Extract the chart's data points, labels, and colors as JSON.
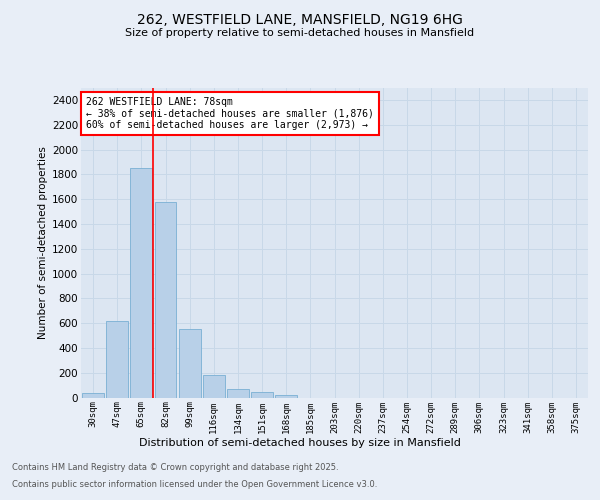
{
  "title1": "262, WESTFIELD LANE, MANSFIELD, NG19 6HG",
  "title2": "Size of property relative to semi-detached houses in Mansfield",
  "xlabel": "Distribution of semi-detached houses by size in Mansfield",
  "ylabel": "Number of semi-detached properties",
  "categories": [
    "30sqm",
    "47sqm",
    "65sqm",
    "82sqm",
    "99sqm",
    "116sqm",
    "134sqm",
    "151sqm",
    "168sqm",
    "185sqm",
    "203sqm",
    "220sqm",
    "237sqm",
    "254sqm",
    "272sqm",
    "289sqm",
    "306sqm",
    "323sqm",
    "341sqm",
    "358sqm",
    "375sqm"
  ],
  "values": [
    35,
    620,
    1850,
    1580,
    550,
    185,
    70,
    42,
    20,
    0,
    0,
    0,
    0,
    0,
    0,
    0,
    0,
    0,
    0,
    0,
    0
  ],
  "bar_color": "#b8d0e8",
  "bar_edge_color": "#7aafd4",
  "vline_color": "red",
  "annotation_text": "262 WESTFIELD LANE: 78sqm\n← 38% of semi-detached houses are smaller (1,876)\n60% of semi-detached houses are larger (2,973) →",
  "annotation_box_color": "white",
  "annotation_edge_color": "red",
  "grid_color": "#c8d8e8",
  "bg_color": "#e8eef7",
  "plot_bg_color": "#dce6f2",
  "footer1": "Contains HM Land Registry data © Crown copyright and database right 2025.",
  "footer2": "Contains public sector information licensed under the Open Government Licence v3.0.",
  "ylim": [
    0,
    2500
  ],
  "yticks": [
    0,
    200,
    400,
    600,
    800,
    1000,
    1200,
    1400,
    1600,
    1800,
    2000,
    2200,
    2400
  ]
}
